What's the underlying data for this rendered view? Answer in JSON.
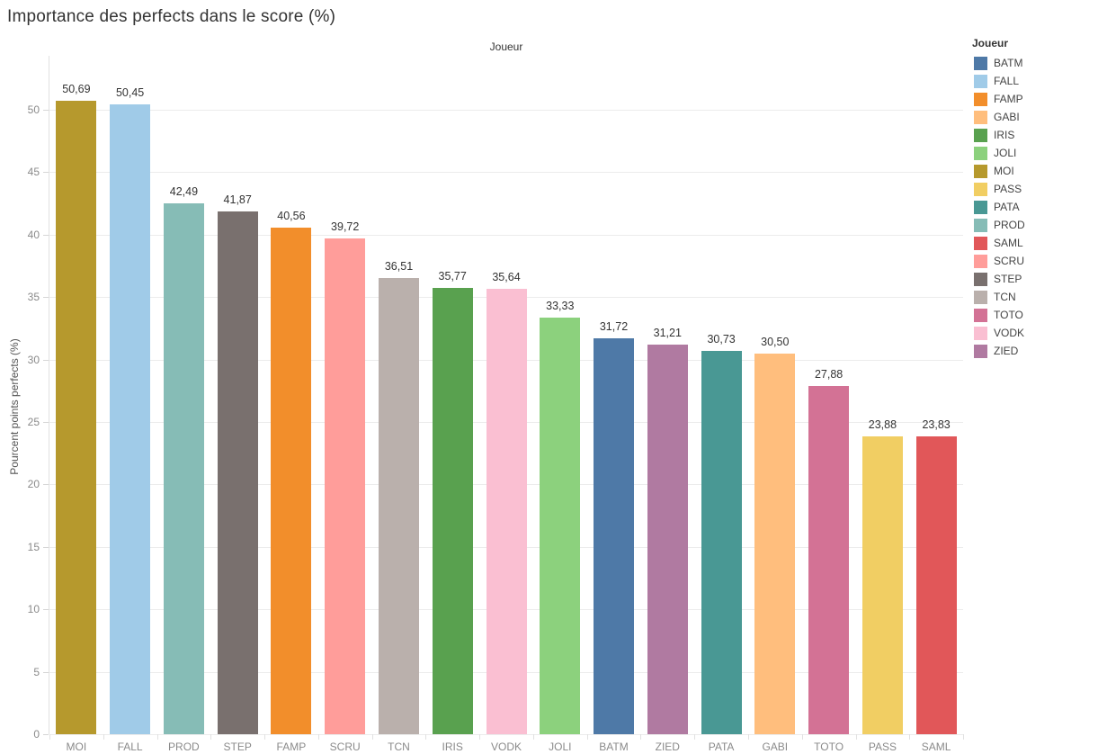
{
  "title": "Importance des perfects dans le score (%)",
  "chart_data": {
    "type": "bar",
    "title": "Importance des perfects dans le score (%)",
    "column_header": "Joueur",
    "xlabel": "Joueur",
    "ylabel": "Pourcent points perfects (%)",
    "categories": [
      "MOI",
      "FALL",
      "PROD",
      "STEP",
      "FAMP",
      "SCRU",
      "TCN",
      "IRIS",
      "VODK",
      "JOLI",
      "BATM",
      "ZIED",
      "PATA",
      "GABI",
      "TOTO",
      "PASS",
      "SAML"
    ],
    "values": [
      50.69,
      50.45,
      42.49,
      41.87,
      40.56,
      39.72,
      36.51,
      35.77,
      35.64,
      33.33,
      31.72,
      31.21,
      30.73,
      30.5,
      27.88,
      23.88,
      23.83
    ],
    "value_labels": [
      "50,69",
      "50,45",
      "42,49",
      "41,87",
      "40,56",
      "39,72",
      "36,51",
      "35,77",
      "35,64",
      "33,33",
      "31,72",
      "31,21",
      "30,73",
      "30,50",
      "27,88",
      "23,88",
      "23,83"
    ],
    "bar_colors": [
      "#b6992d",
      "#a0cbe8",
      "#86bcb6",
      "#79706e",
      "#f28e2b",
      "#ff9d9a",
      "#bab0ac",
      "#59a14f",
      "#fabfd2",
      "#8cd17d",
      "#4e79a7",
      "#b07aa1",
      "#499894",
      "#ffbe7d",
      "#d37295",
      "#f1ce63",
      "#e15759"
    ],
    "ylim": [
      0,
      54.3
    ],
    "yticks": [
      0,
      5,
      10,
      15,
      20,
      25,
      30,
      35,
      40,
      45,
      50
    ],
    "ytick_labels": [
      "0",
      "5",
      "10",
      "15",
      "20",
      "25",
      "30",
      "35",
      "40",
      "45",
      "50"
    ],
    "grid": "horizontal",
    "legend": {
      "title": "Joueur",
      "position": "right",
      "entries": [
        {
          "label": "BATM",
          "color": "#4e79a7"
        },
        {
          "label": "FALL",
          "color": "#a0cbe8"
        },
        {
          "label": "FAMP",
          "color": "#f28e2b"
        },
        {
          "label": "GABI",
          "color": "#ffbe7d"
        },
        {
          "label": "IRIS",
          "color": "#59a14f"
        },
        {
          "label": "JOLI",
          "color": "#8cd17d"
        },
        {
          "label": "MOI",
          "color": "#b6992d"
        },
        {
          "label": "PASS",
          "color": "#f1ce63"
        },
        {
          "label": "PATA",
          "color": "#499894"
        },
        {
          "label": "PROD",
          "color": "#86bcb6"
        },
        {
          "label": "SAML",
          "color": "#e15759"
        },
        {
          "label": "SCRU",
          "color": "#ff9d9a"
        },
        {
          "label": "STEP",
          "color": "#79706e"
        },
        {
          "label": "TCN",
          "color": "#bab0ac"
        },
        {
          "label": "TOTO",
          "color": "#d37295"
        },
        {
          "label": "VODK",
          "color": "#fabfd2"
        },
        {
          "label": "ZIED",
          "color": "#b07aa1"
        }
      ]
    }
  }
}
